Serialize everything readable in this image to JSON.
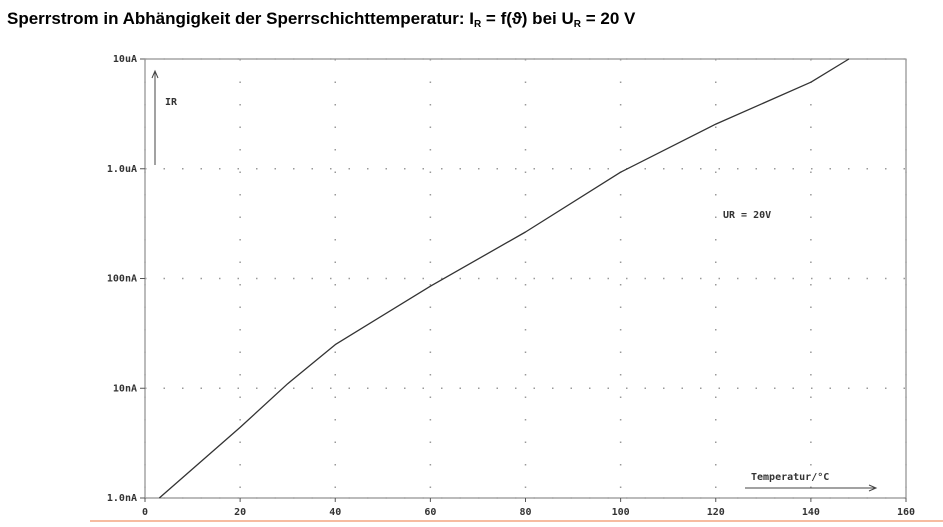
{
  "chart_data": {
    "type": "line",
    "title": [
      "Sperrstrom in Abhängigkeit der Sperrschichttemperatur: I",
      "R",
      " = f(ϑ) bei U",
      "R",
      " = 20 V"
    ],
    "x_label": "Temperatur/°C",
    "y_label": "IR",
    "annotation": "UR = 20V",
    "series": [
      {
        "name": "IR",
        "color": "#333333",
        "x": [
          3,
          20,
          30,
          40,
          60,
          80,
          100,
          120,
          140,
          148
        ],
        "values": [
          1.0,
          4.4,
          11,
          25,
          85,
          265,
          930,
          2550,
          6150,
          10000
        ]
      }
    ],
    "xlim": [
      0,
      160
    ],
    "xticks": [
      0,
      20,
      40,
      60,
      80,
      100,
      120,
      140,
      160
    ],
    "ylim": [
      1,
      10000
    ],
    "log_y": true,
    "yticks": [
      {
        "value": 1,
        "label": "1.0nA"
      },
      {
        "value": 10,
        "label": "10nA"
      },
      {
        "value": 100,
        "label": "100nA"
      },
      {
        "value": 1000,
        "label": "1.0uA"
      },
      {
        "value": 10000,
        "label": "10uA"
      }
    ],
    "grid": true
  }
}
